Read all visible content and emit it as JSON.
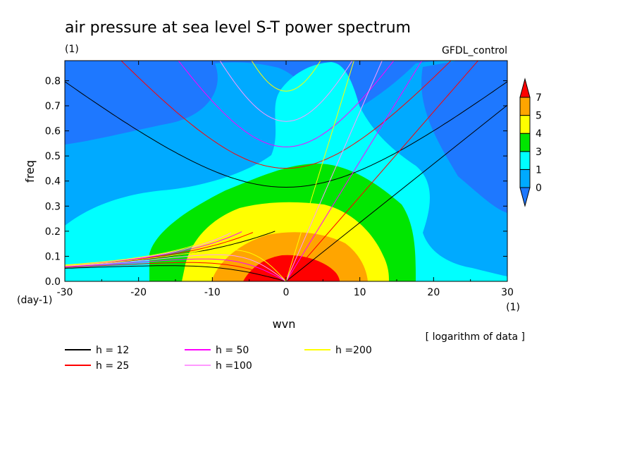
{
  "chart_data": {
    "type": "contour",
    "title": "air pressure at sea level S-T power spectrum",
    "units": "(1)",
    "model": "GFDL_control",
    "xlabel": "wvn",
    "ylabel": "freq",
    "x_units": "(1)",
    "y_units": "(day-1)",
    "data_note": "[ logarithm of data ]",
    "xlim": [
      -30,
      30
    ],
    "ylim": [
      0,
      0.88
    ],
    "x_ticks": [
      "-30",
      "-20",
      "-10",
      "0",
      "10",
      "20",
      "30"
    ],
    "y_ticks": [
      "0.0",
      "0.1",
      "0.2",
      "0.3",
      "0.4",
      "0.5",
      "0.6",
      "0.7",
      "0.8"
    ],
    "colorbar": {
      "labels": [
        "0",
        "1",
        "3",
        "4",
        "5",
        "7"
      ],
      "colors": [
        "#1e78ff",
        "#00aaff",
        "#00ffff",
        "#00e600",
        "#ffff00",
        "#ffa500",
        "#ff0000"
      ]
    },
    "dispersion_curves": [
      {
        "name": "h = 12",
        "h": 12,
        "color": "#000000"
      },
      {
        "name": "h = 25",
        "h": 25,
        "color": "#ff0000"
      },
      {
        "name": "h = 50",
        "h": 50,
        "color": "#ff00ff"
      },
      {
        "name": "h =100",
        "h": 100,
        "color": "#ff99ff"
      },
      {
        "name": "h =200",
        "h": 200,
        "color": "#ffff00"
      }
    ]
  }
}
